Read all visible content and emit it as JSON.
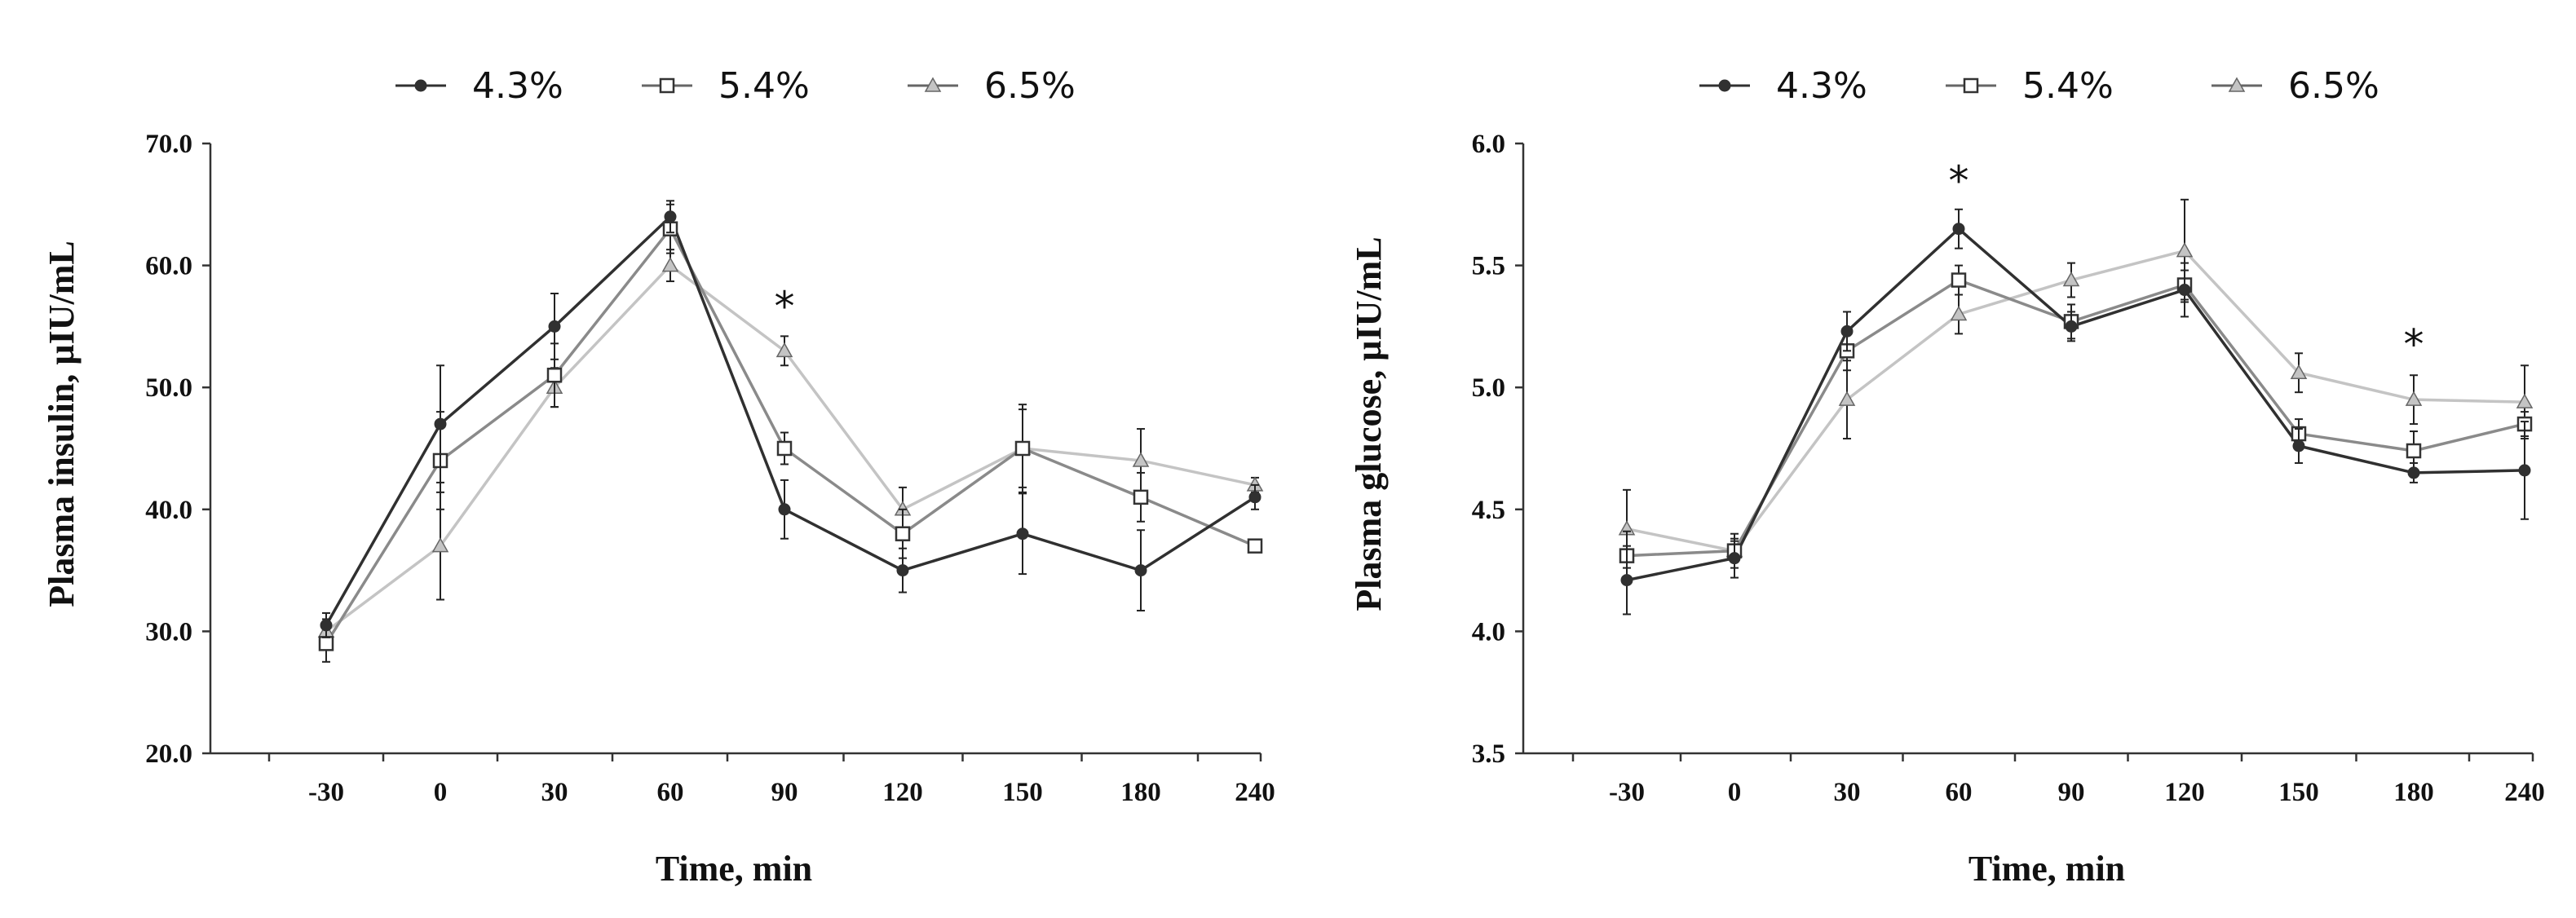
{
  "figure": {
    "legend": [
      {
        "label": "4.3%",
        "marker": "diamond-filled",
        "color": "#303030"
      },
      {
        "label": "5.4%",
        "marker": "square-open",
        "color": "#8a8a8a"
      },
      {
        "label": "6.5%",
        "marker": "triangle-filled",
        "color": "#c4c4c4"
      }
    ]
  },
  "chart_data": [
    {
      "type": "line",
      "title": "",
      "xlabel": "Time, min",
      "ylabel": "Plasma insulin, µIU/mL",
      "categories": [
        "-30",
        "0",
        "30",
        "60",
        "90",
        "120",
        "150",
        "180",
        "240"
      ],
      "ylim": [
        20,
        70
      ],
      "yticks": [
        20,
        30,
        40,
        50,
        60,
        70
      ],
      "ytick_labels": [
        "20.0",
        "30.0",
        "40.0",
        "50.0",
        "60.0",
        "70.0"
      ],
      "series": [
        {
          "name": "4.3%",
          "values": [
            30.5,
            47.0,
            55.0,
            64.0,
            40.0,
            35.0,
            38.0,
            35.0,
            41.0
          ],
          "errors": [
            1.0,
            4.8,
            2.7,
            1.3,
            2.4,
            1.8,
            3.3,
            3.3,
            1.0
          ]
        },
        {
          "name": "5.4%",
          "values": [
            29.0,
            44.0,
            51.0,
            63.0,
            45.0,
            38.0,
            45.0,
            41.0,
            37.0
          ],
          "errors": [
            1.5,
            4.0,
            2.6,
            2.0,
            1.3,
            2.0,
            3.6,
            2.0,
            0.5
          ]
        },
        {
          "name": "6.5%",
          "values": [
            30.0,
            37.0,
            50.0,
            60.0,
            53.0,
            40.0,
            45.0,
            44.0,
            42.0
          ],
          "errors": [
            1.0,
            4.4,
            1.6,
            1.3,
            1.2,
            1.8,
            3.2,
            2.6,
            0.6
          ]
        }
      ],
      "annotations": [
        {
          "category": "90",
          "y": 55.5,
          "text": "*"
        }
      ]
    },
    {
      "type": "line",
      "title": "",
      "xlabel": "Time, min",
      "ylabel": "Plasma glucose, µIU/mL",
      "categories": [
        "-30",
        "0",
        "30",
        "60",
        "90",
        "120",
        "150",
        "180",
        "240"
      ],
      "ylim": [
        3.5,
        6.0
      ],
      "yticks": [
        3.5,
        4.0,
        4.5,
        5.0,
        5.5,
        6.0
      ],
      "ytick_labels": [
        "3.5",
        "4.0",
        "4.5",
        "5.0",
        "5.5",
        "6.0"
      ],
      "series": [
        {
          "name": "4.3%",
          "values": [
            4.21,
            4.3,
            5.23,
            5.65,
            5.25,
            5.4,
            4.76,
            4.65,
            4.66
          ],
          "errors": [
            0.14,
            0.08,
            0.08,
            0.08,
            0.06,
            0.11,
            0.07,
            0.04,
            0.2
          ]
        },
        {
          "name": "5.4%",
          "values": [
            4.31,
            4.33,
            5.15,
            5.44,
            5.27,
            5.42,
            4.81,
            4.74,
            4.85
          ],
          "errors": [
            0.1,
            0.07,
            0.08,
            0.06,
            0.07,
            0.06,
            0.06,
            0.08,
            0.05
          ]
        },
        {
          "name": "6.5%",
          "values": [
            4.42,
            4.33,
            4.95,
            5.3,
            5.44,
            5.56,
            5.06,
            4.95,
            4.94
          ],
          "errors": [
            0.16,
            0.04,
            0.16,
            0.08,
            0.07,
            0.21,
            0.08,
            0.1,
            0.15
          ]
        }
      ],
      "annotations": [
        {
          "category": "60",
          "y": 5.79,
          "text": "*"
        },
        {
          "category": "180",
          "y": 5.12,
          "text": "*"
        }
      ]
    }
  ]
}
